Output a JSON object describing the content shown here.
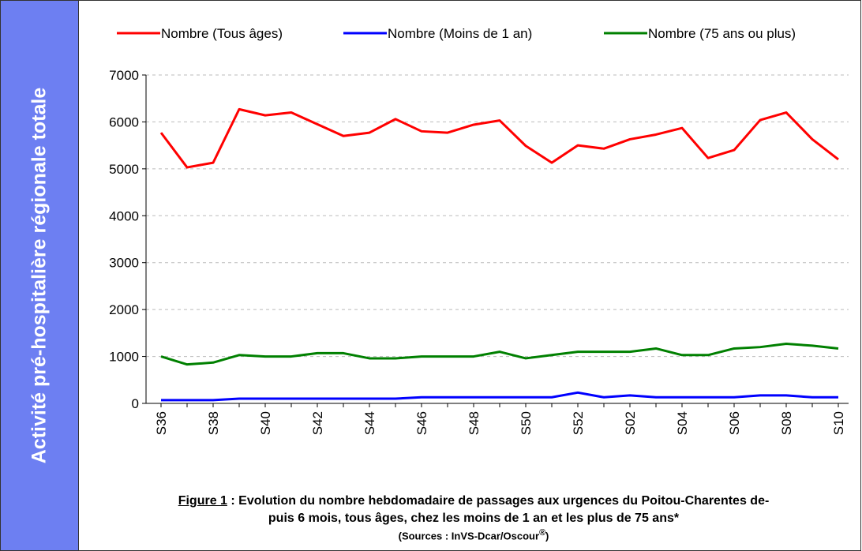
{
  "sidebar_title": "Activité pré-hospitalière régionale totale",
  "chart_data": {
    "type": "line",
    "categories": [
      "S36",
      null,
      "S38",
      null,
      "S40",
      null,
      "S42",
      null,
      "S44",
      null,
      "S46",
      null,
      "S48",
      null,
      "S50",
      null,
      "S52",
      null,
      "S02",
      null,
      "S04",
      null,
      "S06",
      null,
      "S08",
      null,
      "S10"
    ],
    "series": [
      {
        "name": "Nombre (Tous âges)",
        "color": "#ff0000",
        "values": [
          5770,
          5030,
          5130,
          6270,
          6140,
          6200,
          5950,
          5700,
          5770,
          6060,
          5800,
          5770,
          5940,
          6030,
          5490,
          5130,
          5500,
          5430,
          5630,
          5730,
          5870,
          5230,
          5400,
          6040,
          6200,
          5630,
          5200
        ]
      },
      {
        "name": "Nombre (Moins de 1 an)",
        "color": "#0000ff",
        "values": [
          70,
          70,
          70,
          100,
          100,
          100,
          100,
          100,
          100,
          100,
          130,
          130,
          130,
          130,
          130,
          130,
          230,
          130,
          170,
          130,
          130,
          130,
          130,
          170,
          170,
          130,
          130
        ]
      },
      {
        "name": "Nombre (75 ans ou plus)",
        "color": "#008000",
        "values": [
          1000,
          830,
          870,
          1030,
          1000,
          1000,
          1070,
          1070,
          960,
          960,
          1000,
          1000,
          1000,
          1100,
          960,
          1030,
          1100,
          1100,
          1100,
          1170,
          1030,
          1030,
          1170,
          1200,
          1270,
          1230,
          1170
        ]
      }
    ],
    "ylim": [
      0,
      7000
    ],
    "yticks": [
      0,
      1000,
      2000,
      3000,
      4000,
      5000,
      6000,
      7000
    ],
    "grid": true,
    "legend": "top"
  },
  "caption": {
    "figure_label": "Figure 1",
    "lines": [
      ": Evolution du nombre hebdomadaire de passages aux urgences du Poitou-Charentes de-",
      "puis 6 mois, tous âges, chez les moins de 1 an et les plus de 75 ans*"
    ],
    "source": "(Sources : InVS-Dcar/Oscour",
    "source_mark": "®",
    "source_end": ")"
  }
}
